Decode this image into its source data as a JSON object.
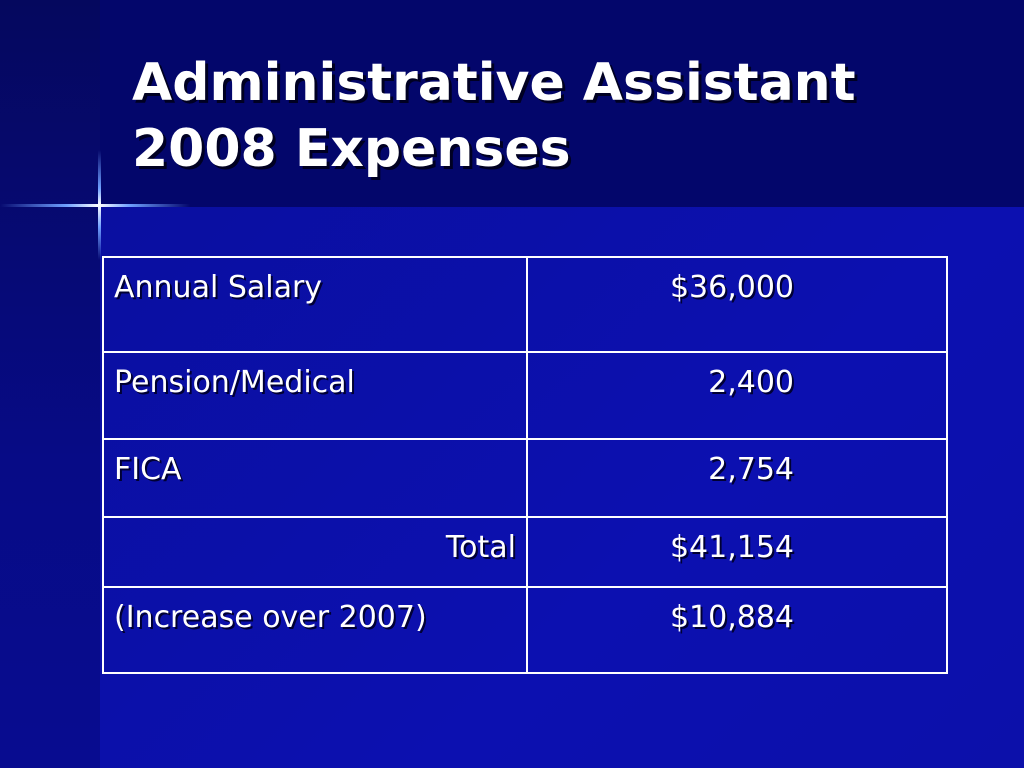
{
  "slide": {
    "title_line1": "Administrative Assistant",
    "title_line2": "2008 Expenses"
  },
  "table": {
    "rows": [
      {
        "label": "Annual Salary",
        "value": "$36,000"
      },
      {
        "label": "Pension/Medical",
        "value": "2,400"
      },
      {
        "label": "FICA",
        "value": "2,754"
      },
      {
        "label": "Total",
        "value": "$41,154"
      },
      {
        "label": "(Increase over 2007)",
        "value": "$10,884"
      }
    ]
  },
  "colors": {
    "background": "#0b0ea6",
    "title_band": "#03066b",
    "text": "#ffffff"
  }
}
